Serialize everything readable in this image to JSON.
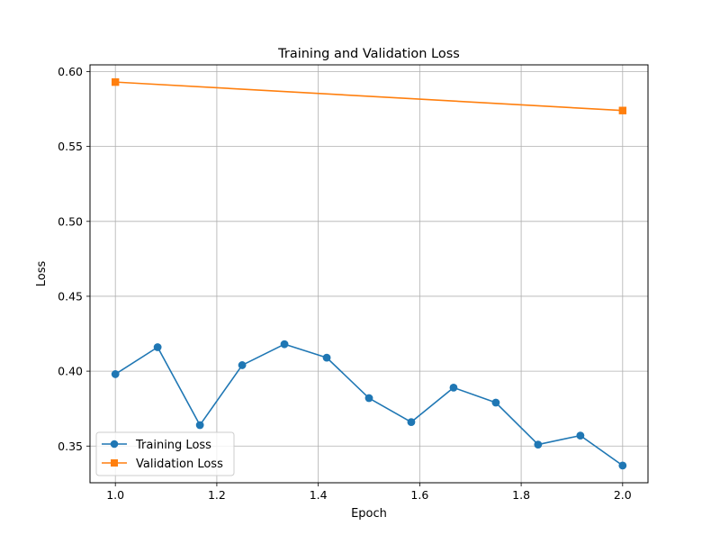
{
  "chart_data": {
    "type": "line",
    "title": "Training and Validation Loss",
    "xlabel": "Epoch",
    "ylabel": "Loss",
    "xlim": [
      0.95,
      2.05
    ],
    "ylim": [
      0.3255,
      0.6045
    ],
    "xticks": [
      1.0,
      1.2,
      1.4,
      1.6,
      1.8,
      2.0
    ],
    "xtick_labels": [
      "1.0",
      "1.2",
      "1.4",
      "1.6",
      "1.8",
      "2.0"
    ],
    "yticks": [
      0.35,
      0.4,
      0.45,
      0.5,
      0.55,
      0.6
    ],
    "ytick_labels": [
      "0.35",
      "0.40",
      "0.45",
      "0.50",
      "0.55",
      "0.60"
    ],
    "grid": true,
    "legend_position": "lower-left",
    "series": [
      {
        "name": "Training Loss",
        "color": "#1f77b4",
        "marker": "circle",
        "x": [
          1.0,
          1.0833,
          1.1667,
          1.25,
          1.3333,
          1.4167,
          1.5,
          1.5833,
          1.6667,
          1.75,
          1.8333,
          1.9167,
          2.0
        ],
        "y": [
          0.398,
          0.416,
          0.364,
          0.404,
          0.418,
          0.409,
          0.382,
          0.366,
          0.389,
          0.379,
          0.351,
          0.357,
          0.337
        ]
      },
      {
        "name": "Validation Loss",
        "color": "#ff7f0e",
        "marker": "square",
        "x": [
          1.0,
          2.0
        ],
        "y": [
          0.593,
          0.574
        ]
      }
    ]
  }
}
